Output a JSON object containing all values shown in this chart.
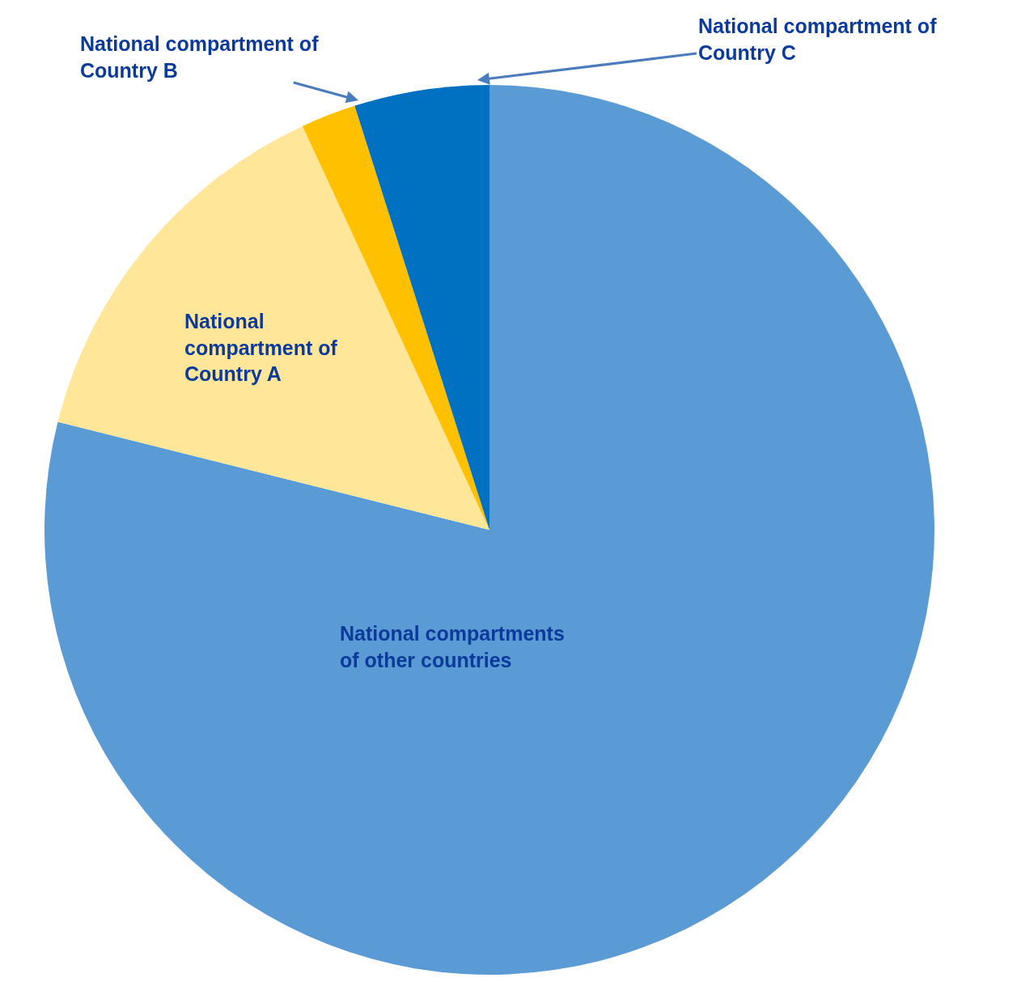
{
  "chart_data": {
    "type": "pie",
    "categories": [
      "National compartments of other countries",
      "National compartment of Country A",
      "National compartment of Country B",
      "National compartment of Country C"
    ],
    "values": [
      78.9,
      14.2,
      2.0,
      4.9
    ],
    "colors": [
      "#5b9bd5",
      "#ffe699",
      "#ffc000",
      "#0070c0"
    ],
    "legend": false
  }
}
